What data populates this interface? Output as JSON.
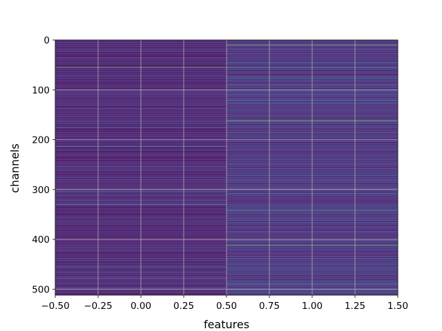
{
  "chart_data": {
    "type": "heatmap",
    "title": "",
    "xlabel": "features",
    "ylabel": "channels",
    "xlim": [
      -0.5,
      1.5
    ],
    "ylim": [
      512,
      0
    ],
    "y_axis_inverted": true,
    "grid": true,
    "colormap": "viridis",
    "columns": 2,
    "rows": 512,
    "x_ticks": [
      -0.5,
      -0.25,
      0.0,
      0.25,
      0.5,
      0.75,
      1.0,
      1.25,
      1.5
    ],
    "x_tick_labels": [
      "−0.50",
      "−0.25",
      "0.00",
      "0.25",
      "0.50",
      "0.75",
      "1.00",
      "1.25",
      "1.50"
    ],
    "y_ticks": [
      0,
      100,
      200,
      300,
      400,
      500
    ],
    "y_tick_labels": [
      "0",
      "100",
      "200",
      "300",
      "400",
      "500"
    ],
    "column_baselines": [
      0.1,
      0.16
    ],
    "highlighted_rows": [
      {
        "column": 0,
        "row": 55,
        "value": 0.72
      },
      {
        "column": 0,
        "row": 214,
        "value": 0.55
      },
      {
        "column": 0,
        "row": 300,
        "value": 0.45
      },
      {
        "column": 0,
        "row": 330,
        "value": 0.42
      },
      {
        "column": 0,
        "row": 455,
        "value": 0.5
      },
      {
        "column": 1,
        "row": 10,
        "value": 0.75
      },
      {
        "column": 1,
        "row": 55,
        "value": 0.5
      },
      {
        "column": 1,
        "row": 162,
        "value": 0.78
      },
      {
        "column": 1,
        "row": 342,
        "value": 0.55
      },
      {
        "column": 1,
        "row": 412,
        "value": 0.72
      },
      {
        "column": 1,
        "row": 490,
        "value": 0.6
      }
    ]
  }
}
